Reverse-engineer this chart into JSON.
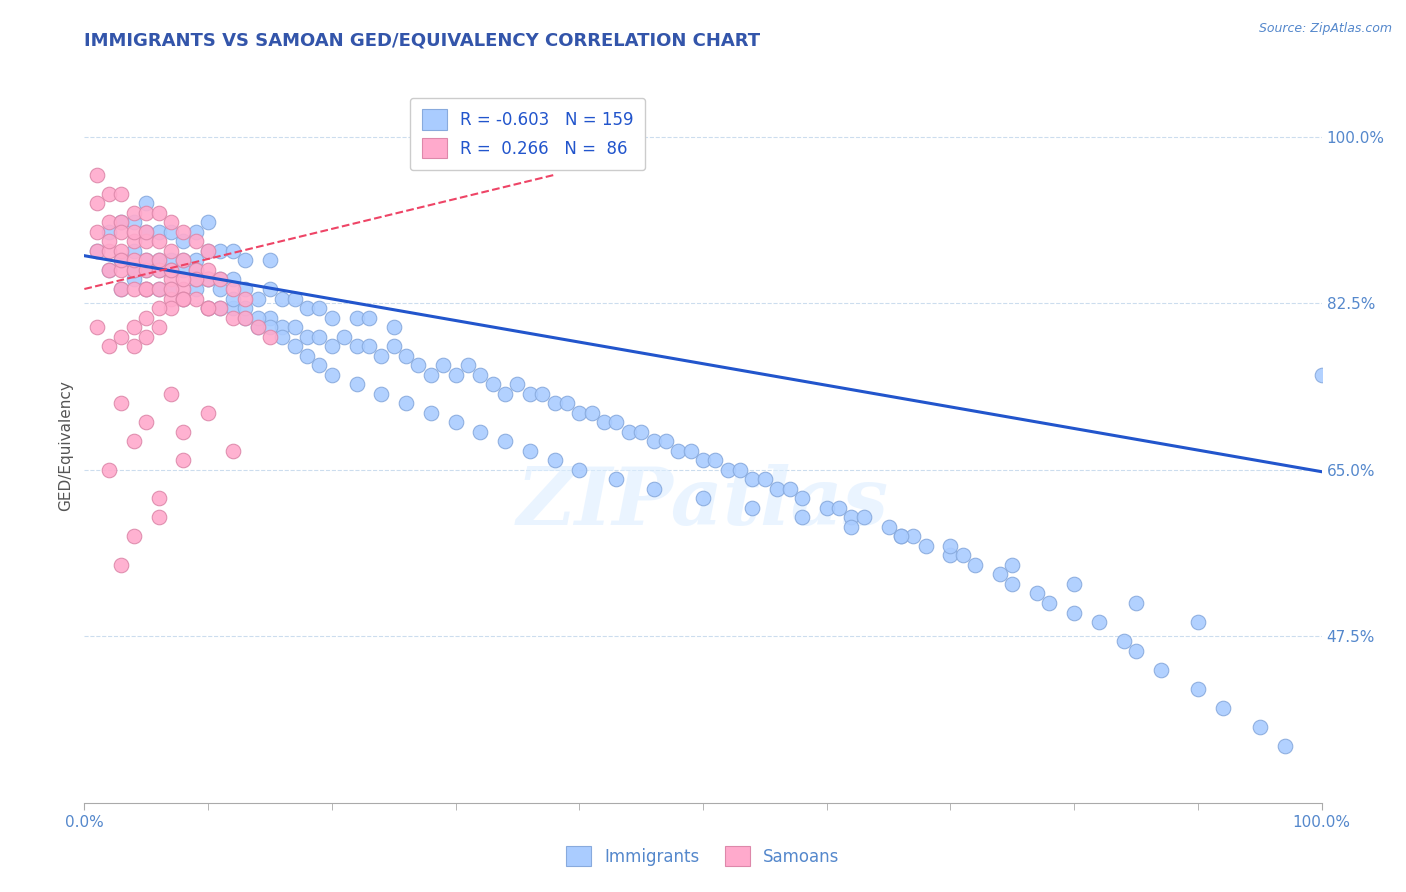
{
  "title": "IMMIGRANTS VS SAMOAN GED/EQUIVALENCY CORRELATION CHART",
  "source_text": "Source: ZipAtlas.com",
  "ylabel": "GED/Equivalency",
  "xlim": [
    0.0,
    1.0
  ],
  "ylim": [
    0.3,
    1.05
  ],
  "yticks": [
    0.475,
    0.65,
    0.825,
    1.0
  ],
  "ytick_labels": [
    "47.5%",
    "65.0%",
    "82.5%",
    "100.0%"
  ],
  "xtick_labels_left": "0.0%",
  "xtick_labels_right": "100.0%",
  "title_color": "#3355aa",
  "axis_color": "#5588cc",
  "grid_color": "#ccddee",
  "background_color": "#ffffff",
  "immigrants_color": "#aaccff",
  "immigrants_edge": "#88aadd",
  "samoans_color": "#ffaacc",
  "samoans_edge": "#dd88aa",
  "trend_blue_color": "#2255cc",
  "trend_pink_color": "#ee4466",
  "blue_trend_x0": 0.0,
  "blue_trend_y0": 0.875,
  "blue_trend_x1": 1.0,
  "blue_trend_y1": 0.648,
  "pink_trend_x0": 0.0,
  "pink_trend_x1": 0.38,
  "pink_trend_y0": 0.84,
  "pink_trend_y1": 0.96,
  "immigrants_x": [
    0.01,
    0.02,
    0.02,
    0.03,
    0.03,
    0.03,
    0.04,
    0.04,
    0.04,
    0.04,
    0.05,
    0.05,
    0.05,
    0.05,
    0.05,
    0.06,
    0.06,
    0.06,
    0.06,
    0.07,
    0.07,
    0.07,
    0.07,
    0.08,
    0.08,
    0.08,
    0.09,
    0.09,
    0.09,
    0.09,
    0.1,
    0.1,
    0.1,
    0.1,
    0.11,
    0.11,
    0.11,
    0.12,
    0.12,
    0.12,
    0.13,
    0.13,
    0.13,
    0.14,
    0.14,
    0.15,
    0.15,
    0.15,
    0.16,
    0.16,
    0.17,
    0.17,
    0.18,
    0.18,
    0.19,
    0.19,
    0.2,
    0.2,
    0.21,
    0.22,
    0.22,
    0.23,
    0.23,
    0.24,
    0.25,
    0.25,
    0.26,
    0.27,
    0.28,
    0.29,
    0.3,
    0.31,
    0.32,
    0.33,
    0.34,
    0.35,
    0.36,
    0.37,
    0.38,
    0.39,
    0.4,
    0.41,
    0.42,
    0.43,
    0.44,
    0.45,
    0.46,
    0.47,
    0.48,
    0.49,
    0.5,
    0.51,
    0.52,
    0.53,
    0.54,
    0.55,
    0.56,
    0.57,
    0.58,
    0.6,
    0.61,
    0.62,
    0.63,
    0.65,
    0.66,
    0.67,
    0.68,
    0.7,
    0.71,
    0.72,
    0.74,
    0.75,
    0.77,
    0.78,
    0.8,
    0.82,
    0.84,
    0.85,
    0.87,
    0.9,
    0.92,
    0.95,
    0.97,
    1.0,
    0.08,
    0.09,
    0.1,
    0.11,
    0.12,
    0.13,
    0.14,
    0.15,
    0.16,
    0.17,
    0.18,
    0.19,
    0.2,
    0.22,
    0.24,
    0.26,
    0.28,
    0.3,
    0.32,
    0.34,
    0.36,
    0.38,
    0.4,
    0.43,
    0.46,
    0.5,
    0.54,
    0.58,
    0.62,
    0.66,
    0.7,
    0.75,
    0.8,
    0.85,
    0.9
  ],
  "immigrants_y": [
    0.88,
    0.86,
    0.9,
    0.84,
    0.87,
    0.91,
    0.85,
    0.88,
    0.91,
    0.86,
    0.84,
    0.87,
    0.9,
    0.93,
    0.86,
    0.84,
    0.87,
    0.9,
    0.86,
    0.84,
    0.87,
    0.9,
    0.86,
    0.83,
    0.86,
    0.89,
    0.84,
    0.87,
    0.9,
    0.85,
    0.82,
    0.85,
    0.88,
    0.91,
    0.82,
    0.85,
    0.88,
    0.82,
    0.85,
    0.88,
    0.81,
    0.84,
    0.87,
    0.8,
    0.83,
    0.81,
    0.84,
    0.87,
    0.8,
    0.83,
    0.8,
    0.83,
    0.79,
    0.82,
    0.79,
    0.82,
    0.78,
    0.81,
    0.79,
    0.78,
    0.81,
    0.78,
    0.81,
    0.77,
    0.78,
    0.8,
    0.77,
    0.76,
    0.75,
    0.76,
    0.75,
    0.76,
    0.75,
    0.74,
    0.73,
    0.74,
    0.73,
    0.73,
    0.72,
    0.72,
    0.71,
    0.71,
    0.7,
    0.7,
    0.69,
    0.69,
    0.68,
    0.68,
    0.67,
    0.67,
    0.66,
    0.66,
    0.65,
    0.65,
    0.64,
    0.64,
    0.63,
    0.63,
    0.62,
    0.61,
    0.61,
    0.6,
    0.6,
    0.59,
    0.58,
    0.58,
    0.57,
    0.56,
    0.56,
    0.55,
    0.54,
    0.53,
    0.52,
    0.51,
    0.5,
    0.49,
    0.47,
    0.46,
    0.44,
    0.42,
    0.4,
    0.38,
    0.36,
    0.75,
    0.87,
    0.86,
    0.85,
    0.84,
    0.83,
    0.82,
    0.81,
    0.8,
    0.79,
    0.78,
    0.77,
    0.76,
    0.75,
    0.74,
    0.73,
    0.72,
    0.71,
    0.7,
    0.69,
    0.68,
    0.67,
    0.66,
    0.65,
    0.64,
    0.63,
    0.62,
    0.61,
    0.6,
    0.59,
    0.58,
    0.57,
    0.55,
    0.53,
    0.51,
    0.49
  ],
  "samoans_x": [
    0.01,
    0.01,
    0.01,
    0.01,
    0.02,
    0.02,
    0.02,
    0.02,
    0.02,
    0.03,
    0.03,
    0.03,
    0.03,
    0.03,
    0.03,
    0.03,
    0.04,
    0.04,
    0.04,
    0.04,
    0.04,
    0.04,
    0.05,
    0.05,
    0.05,
    0.05,
    0.05,
    0.05,
    0.05,
    0.06,
    0.06,
    0.06,
    0.06,
    0.06,
    0.07,
    0.07,
    0.07,
    0.07,
    0.07,
    0.08,
    0.08,
    0.08,
    0.08,
    0.09,
    0.09,
    0.09,
    0.1,
    0.1,
    0.1,
    0.11,
    0.11,
    0.12,
    0.12,
    0.13,
    0.14,
    0.15,
    0.04,
    0.05,
    0.06,
    0.07,
    0.08,
    0.09,
    0.1,
    0.01,
    0.02,
    0.03,
    0.04,
    0.05,
    0.06,
    0.07,
    0.08,
    0.1,
    0.13,
    0.03,
    0.05,
    0.07,
    0.02,
    0.04,
    0.08,
    0.1,
    0.12,
    0.06,
    0.03,
    0.04,
    0.06,
    0.08
  ],
  "samoans_y": [
    0.9,
    0.93,
    0.96,
    0.88,
    0.88,
    0.91,
    0.94,
    0.86,
    0.89,
    0.86,
    0.88,
    0.91,
    0.94,
    0.84,
    0.87,
    0.9,
    0.86,
    0.89,
    0.92,
    0.84,
    0.87,
    0.9,
    0.86,
    0.89,
    0.92,
    0.84,
    0.87,
    0.9,
    0.84,
    0.86,
    0.89,
    0.92,
    0.84,
    0.87,
    0.85,
    0.88,
    0.91,
    0.83,
    0.86,
    0.84,
    0.87,
    0.9,
    0.83,
    0.83,
    0.86,
    0.89,
    0.82,
    0.85,
    0.88,
    0.82,
    0.85,
    0.81,
    0.84,
    0.81,
    0.8,
    0.79,
    0.78,
    0.79,
    0.8,
    0.82,
    0.83,
    0.85,
    0.82,
    0.8,
    0.78,
    0.79,
    0.8,
    0.81,
    0.82,
    0.84,
    0.85,
    0.86,
    0.83,
    0.72,
    0.7,
    0.73,
    0.65,
    0.68,
    0.69,
    0.71,
    0.67,
    0.6,
    0.55,
    0.58,
    0.62,
    0.66
  ]
}
